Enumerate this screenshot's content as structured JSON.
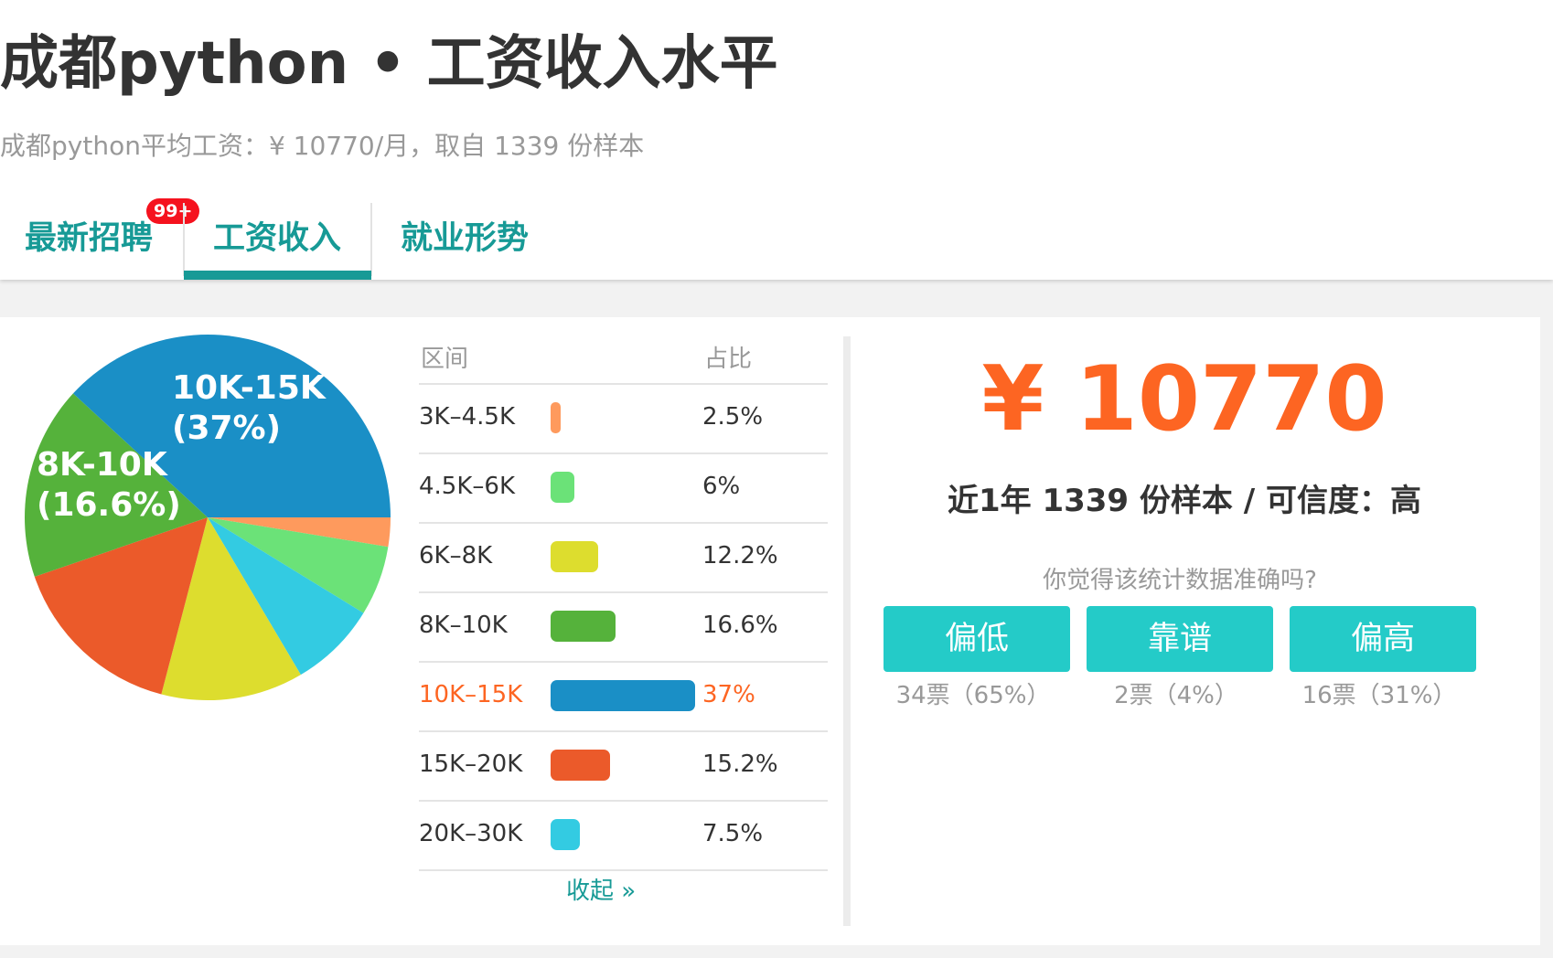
{
  "header": {
    "title": "成都python • 工资收入水平",
    "subtitle": "成都python平均工资：¥ 10770/月，取自 1339 份样本"
  },
  "tabs": [
    {
      "label": "最新招聘",
      "badge": "99+"
    },
    {
      "label": "工资收入",
      "active": true
    },
    {
      "label": "就业形势"
    }
  ],
  "chart_data": {
    "type": "pie",
    "categories": [
      "3K–4.5K",
      "4.5K–6K",
      "6K–8K",
      "8K–10K",
      "10K–15K",
      "15K–20K",
      "20K–30K"
    ],
    "values": [
      2.5,
      6,
      12.2,
      16.6,
      37,
      15.2,
      7.5
    ],
    "colors": [
      "#fe9a5d",
      "#6be278",
      "#dddd2e",
      "#55b23b",
      "#1a8fc6",
      "#eb5a2a",
      "#33cbe2"
    ],
    "slice_labels": [
      {
        "text": "10K-15K",
        "sub": "(37%)"
      },
      {
        "text": "8K-10K",
        "sub": "(16.6%)"
      }
    ]
  },
  "table": {
    "headers": [
      "区间",
      "占比"
    ],
    "rows": [
      {
        "range": "3K–4.5K",
        "pct": "2.5%"
      },
      {
        "range": "4.5K–6K",
        "pct": "6%"
      },
      {
        "range": "6K–8K",
        "pct": "12.2%"
      },
      {
        "range": "8K–10K",
        "pct": "16.6%"
      },
      {
        "range": "10K–15K",
        "pct": "37%",
        "highlight": true
      },
      {
        "range": "15K–20K",
        "pct": "15.2%"
      },
      {
        "range": "20K–30K",
        "pct": "7.5%"
      }
    ],
    "collapse": "收起 »",
    "highlight_color": "#fd6522"
  },
  "summary": {
    "average": "¥ 10770",
    "sample_line": "近1年 1339 份样本 / 可信度：高",
    "question": "你觉得该统计数据准确吗?",
    "votes": [
      {
        "label": "偏低",
        "count": "34票（65%）"
      },
      {
        "label": "靠谱",
        "count": "2票（4%）"
      },
      {
        "label": "偏高",
        "count": "16票（31%）"
      }
    ]
  }
}
